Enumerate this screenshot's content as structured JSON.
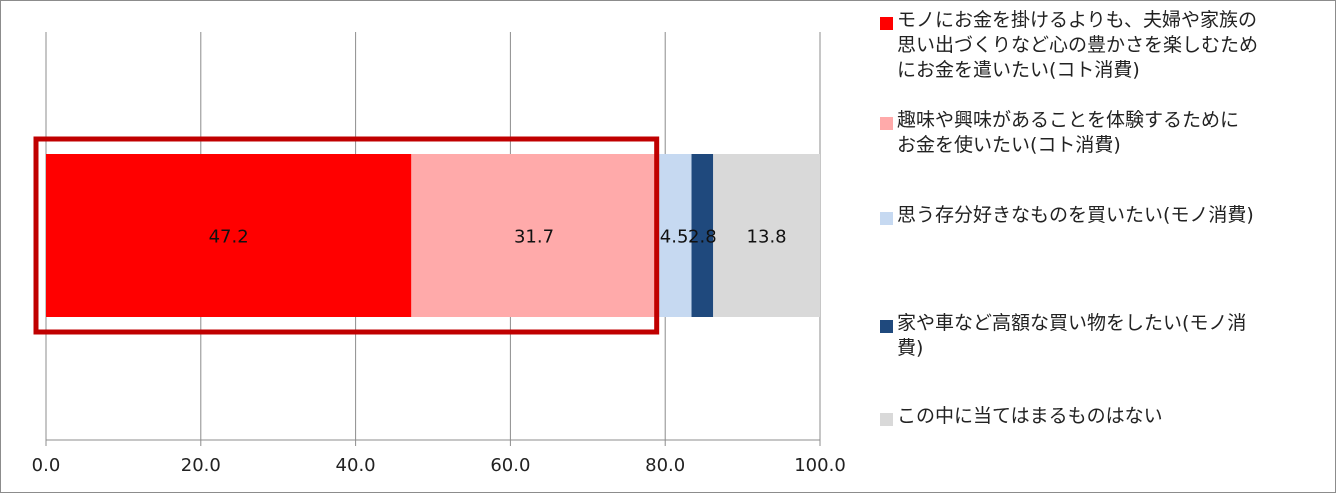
{
  "chart_data": {
    "type": "bar",
    "orientation": "horizontal",
    "stacked": true,
    "xlim": [
      0,
      100
    ],
    "x_ticks": [
      "0.0",
      "20.0",
      "40.0",
      "60.0",
      "80.0",
      "100.0"
    ],
    "grid": "vertical",
    "legend_position": "right",
    "series": [
      {
        "name": "モノにお金を掛けるよりも、夫婦や家族の思い出づくりなど心の豊かさを楽しむためにお金を遣いたい(コト消費)",
        "value": 47.2,
        "label": "47.2",
        "color": "#ff0000"
      },
      {
        "name": "趣味や興味があることを体験するためにお金を使いたい(コト消費)",
        "value": 31.7,
        "label": "31.7",
        "color": "#ffaaaa"
      },
      {
        "name": "思う存分好きなものを買いたい(モノ消費)",
        "value": 4.5,
        "label": "4.5",
        "color": "#c6d9f1"
      },
      {
        "name": "家や車など高額な買い物をしたい(モノ消費)",
        "value": 2.8,
        "label": "2.8",
        "color": "#1f497d"
      },
      {
        "name": "この中に当てはまるものはない",
        "value": 13.8,
        "label": "13.8",
        "color": "#d9d9d9"
      }
    ],
    "highlight_box": {
      "covers_series": [
        0,
        1
      ],
      "color": "#c00000"
    }
  },
  "legend": {
    "items": [
      {
        "lines": [
          "モノにお金を掛けるよりも、夫婦や家族の",
          "思い出づくりなど心の豊かさを楽しむため",
          "にお金を遣いたい(コト消費)"
        ]
      },
      {
        "lines": [
          "趣味や興味があることを体験するために",
          "お金を使いたい(コト消費)"
        ]
      },
      {
        "lines": [
          "思う存分好きなものを買いたい(モノ消費)"
        ]
      },
      {
        "lines": [
          "家や車など高額な買い物をしたい(モノ消",
          "費)"
        ]
      },
      {
        "lines": [
          "この中に当てはまるものはない"
        ]
      }
    ]
  }
}
